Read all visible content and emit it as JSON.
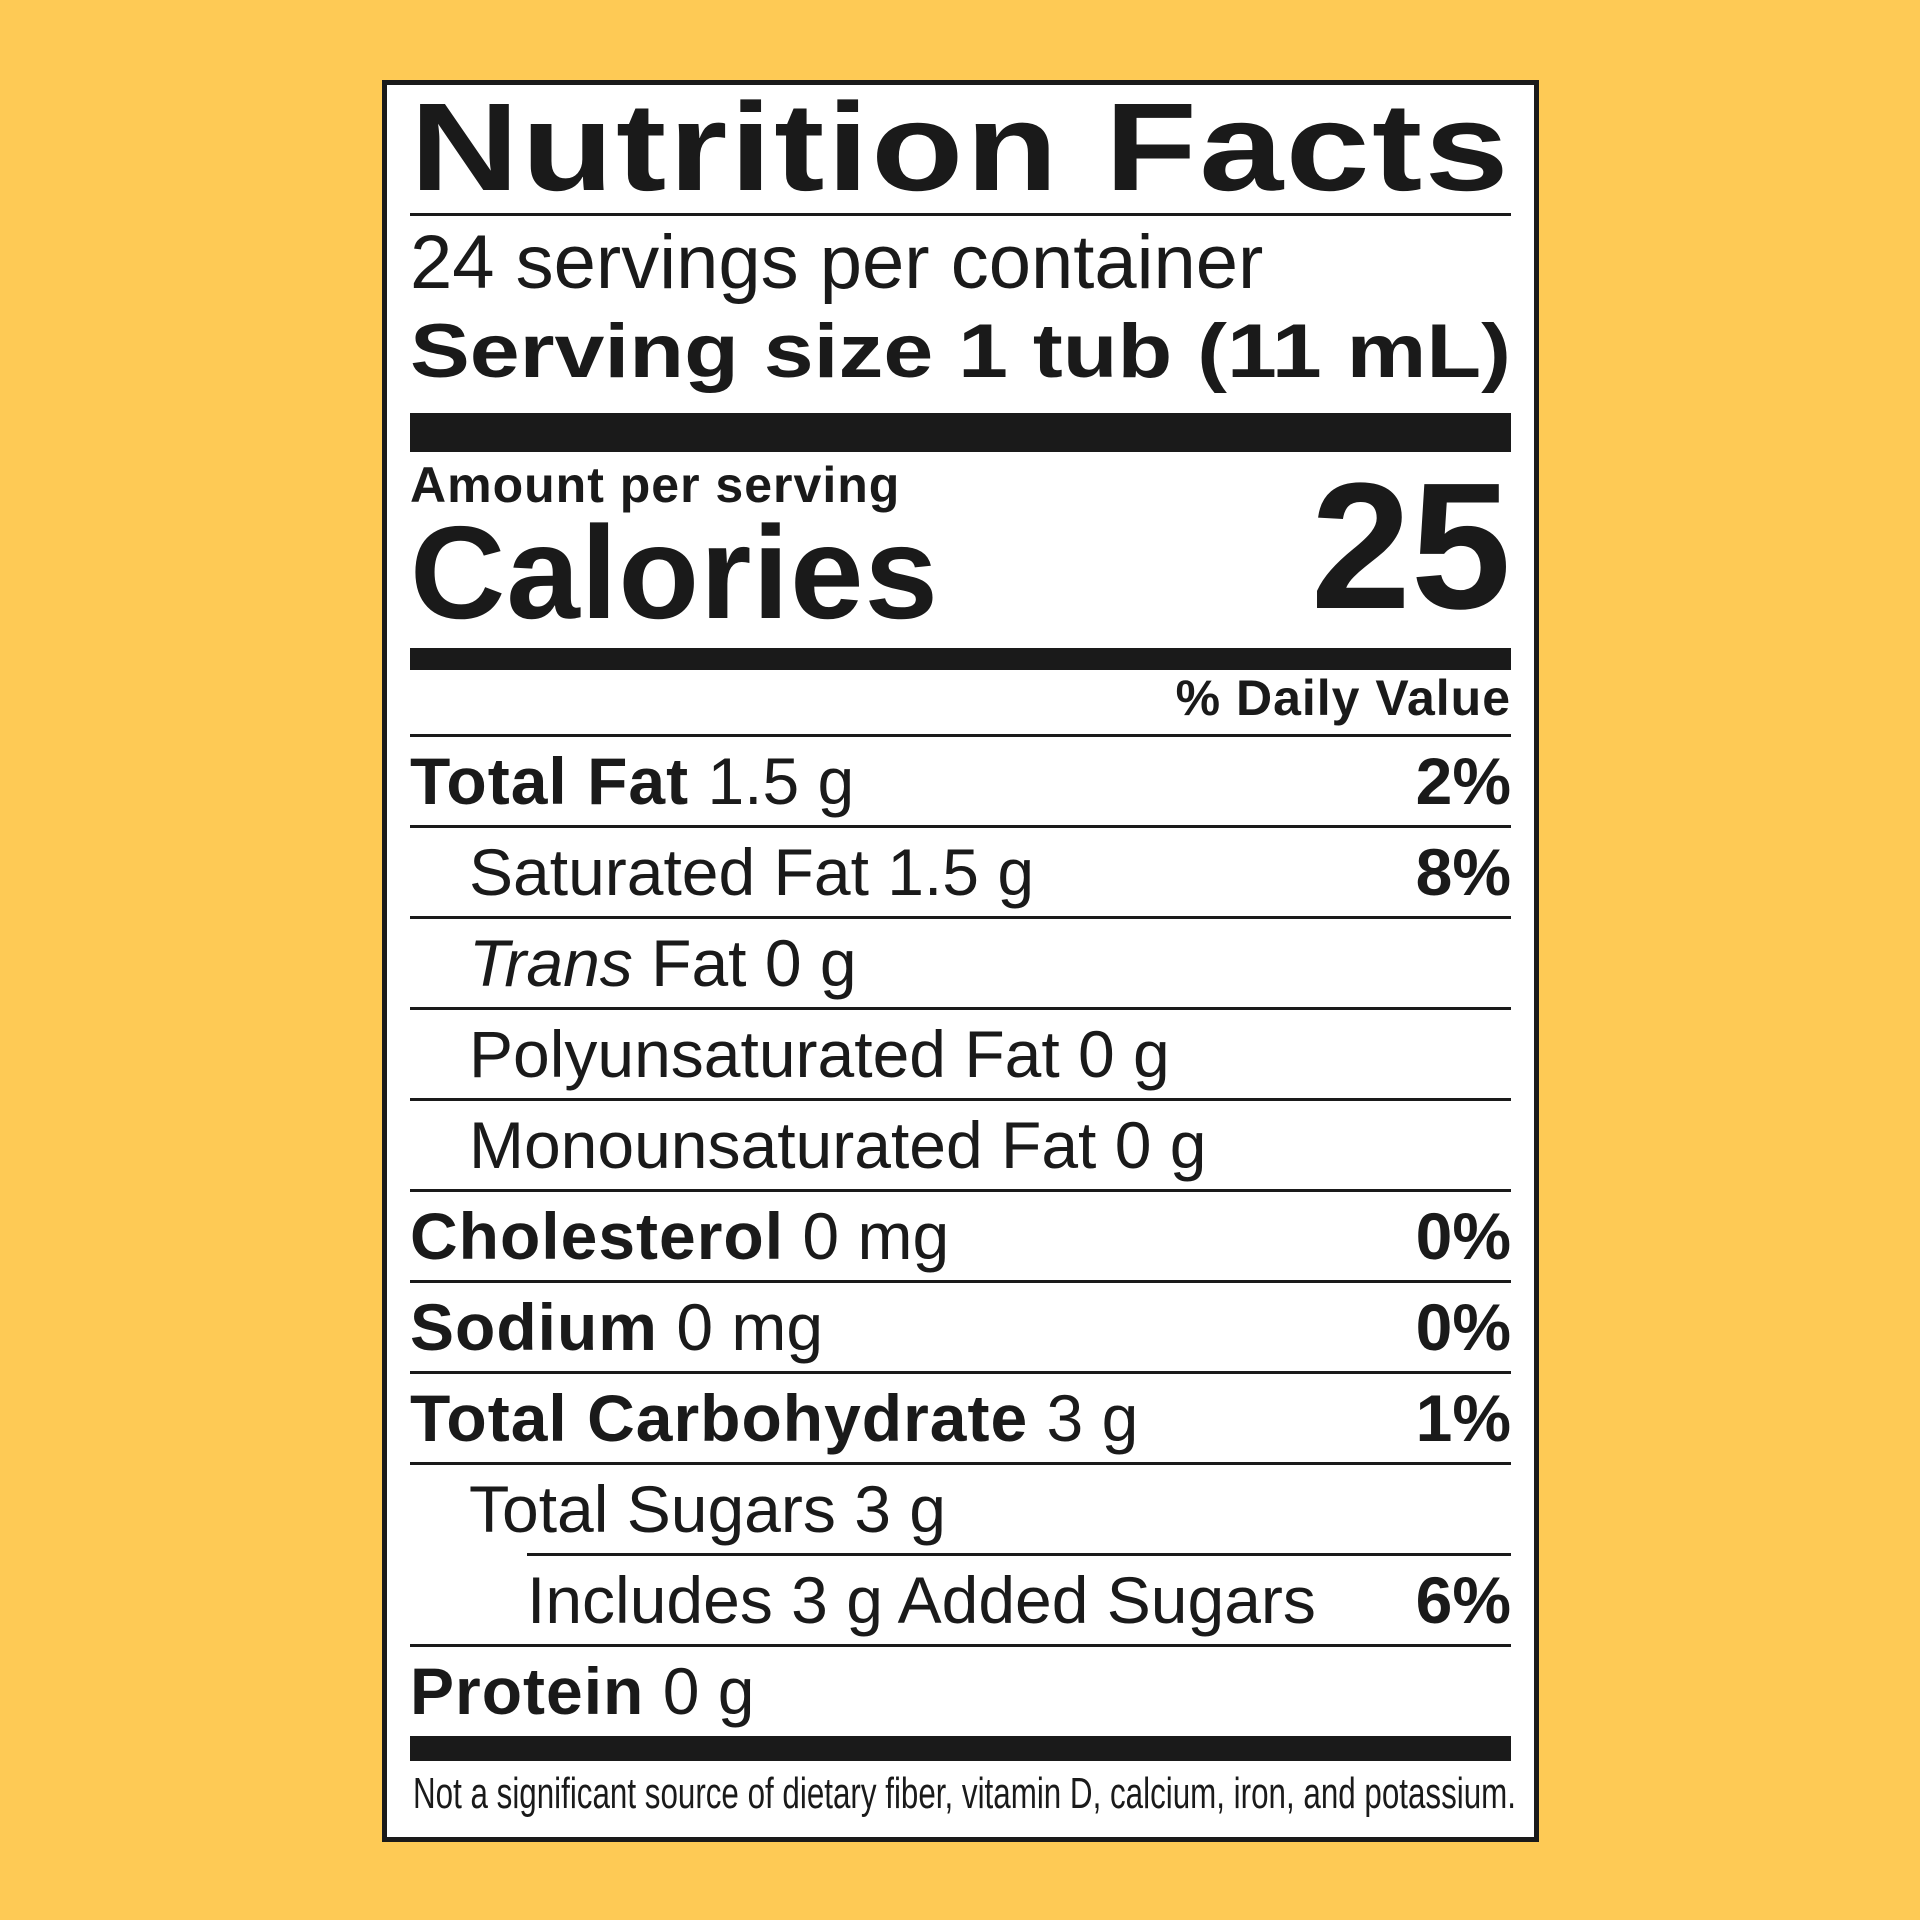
{
  "title": "Nutrition Facts",
  "servings_per_container": "24 servings per container",
  "serving_size": "Serving size 1 tub (11 mL)",
  "amount_per_serving": "Amount per serving",
  "calories_label": "Calories",
  "calories_value": "25",
  "daily_value_header": "% Daily Value",
  "rows": [
    {
      "label": "Total Fat",
      "amount": "1.5 g",
      "dv": "2%"
    },
    {
      "label": "Saturated Fat 1.5 g",
      "dv": "8%"
    },
    {
      "label_italic": "Trans",
      "label": "Fat 0 g"
    },
    {
      "label": "Polyunsaturated Fat 0 g"
    },
    {
      "label": "Monounsaturated Fat 0 g"
    },
    {
      "label": "Cholesterol",
      "amount": "0 mg",
      "dv": "0%"
    },
    {
      "label": "Sodium",
      "amount": "0 mg",
      "dv": "0%"
    },
    {
      "label": "Total Carbohydrate",
      "amount": "3 g",
      "dv": "1%"
    },
    {
      "label": "Total Sugars 3 g"
    },
    {
      "label": "Includes 3 g Added Sugars",
      "dv": "6%"
    },
    {
      "label": "Protein",
      "amount": "0 g"
    }
  ],
  "footer": "Not a significant source of dietary fiber, vitamin D, calcium, iron, and potassium.",
  "colors": {
    "background": "#FECA55",
    "ink": "#1a1a1a",
    "panel": "#ffffff"
  }
}
